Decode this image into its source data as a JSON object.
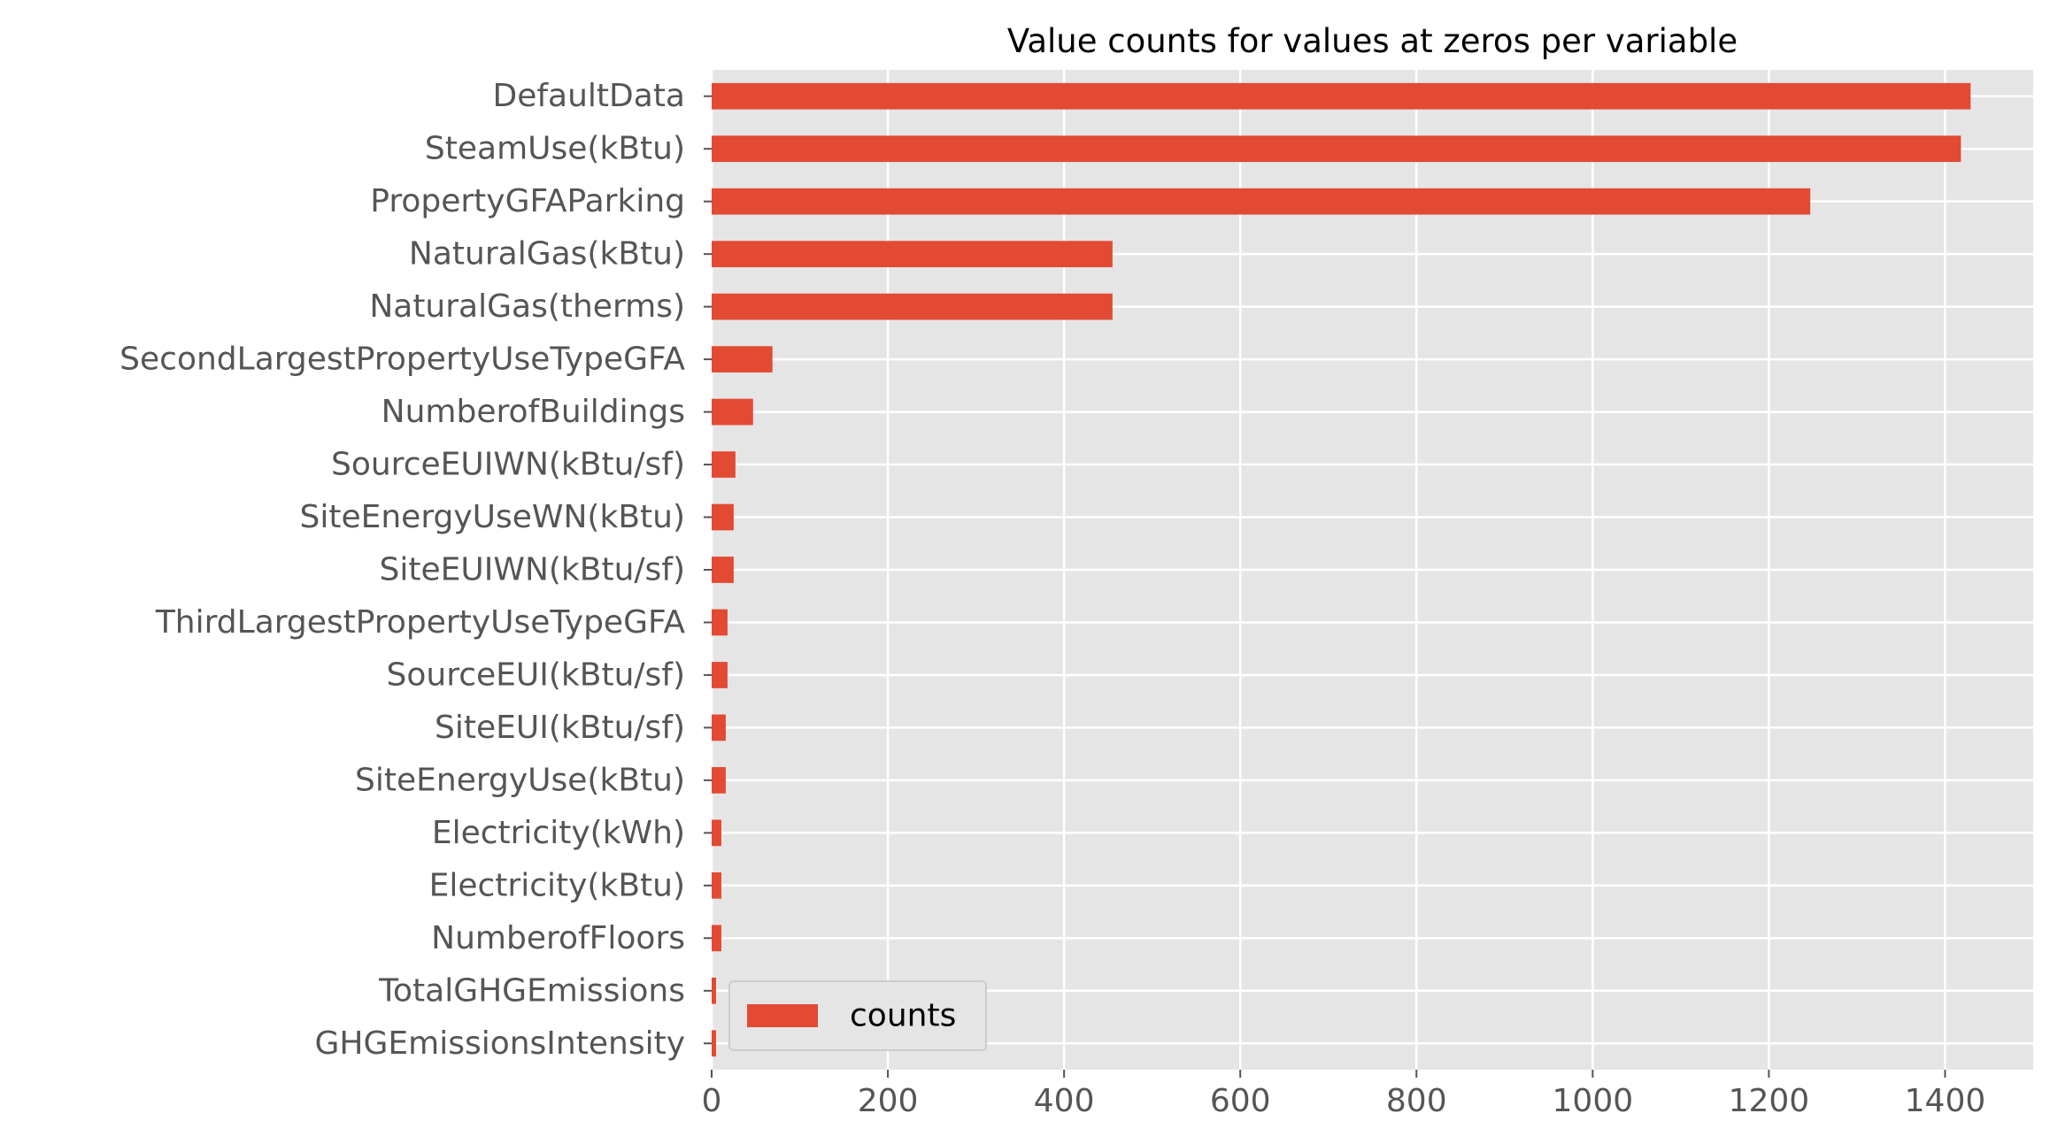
{
  "chart_data": {
    "type": "bar",
    "orientation": "horizontal",
    "title": "Value counts for values at zeros per variable",
    "xlabel": "",
    "ylabel": "",
    "categories": [
      "DefaultData",
      "SteamUse(kBtu)",
      "PropertyGFAParking",
      "NaturalGas(kBtu)",
      "NaturalGas(therms)",
      "SecondLargestPropertyUseTypeGFA",
      "NumberofBuildings",
      "SourceEUIWN(kBtu/sf)",
      "SiteEnergyUseWN(kBtu)",
      "SiteEUIWN(kBtu/sf)",
      "ThirdLargestPropertyUseTypeGFA",
      "SourceEUI(kBtu/sf)",
      "SiteEUI(kBtu/sf)",
      "SiteEnergyUse(kBtu)",
      "Electricity(kWh)",
      "Electricity(kBtu)",
      "NumberofFloors",
      "TotalGHGEmissions",
      "GHGEmissionsIntensity"
    ],
    "series": [
      {
        "name": "counts",
        "values": [
          1429,
          1418,
          1247,
          455,
          455,
          69,
          47,
          27,
          25,
          25,
          18,
          18,
          16,
          16,
          11,
          11,
          11,
          5,
          5
        ]
      }
    ],
    "xlim": [
      0,
      1500
    ],
    "xticks": [
      0,
      200,
      400,
      600,
      800,
      1000,
      1200,
      1400
    ],
    "grid": true,
    "legend_position": "lower-left",
    "colors": {
      "bar": "#E24A33",
      "plot_background": "#E5E5E5",
      "grid": "#FFFFFF",
      "tick_label": "#555555"
    }
  }
}
